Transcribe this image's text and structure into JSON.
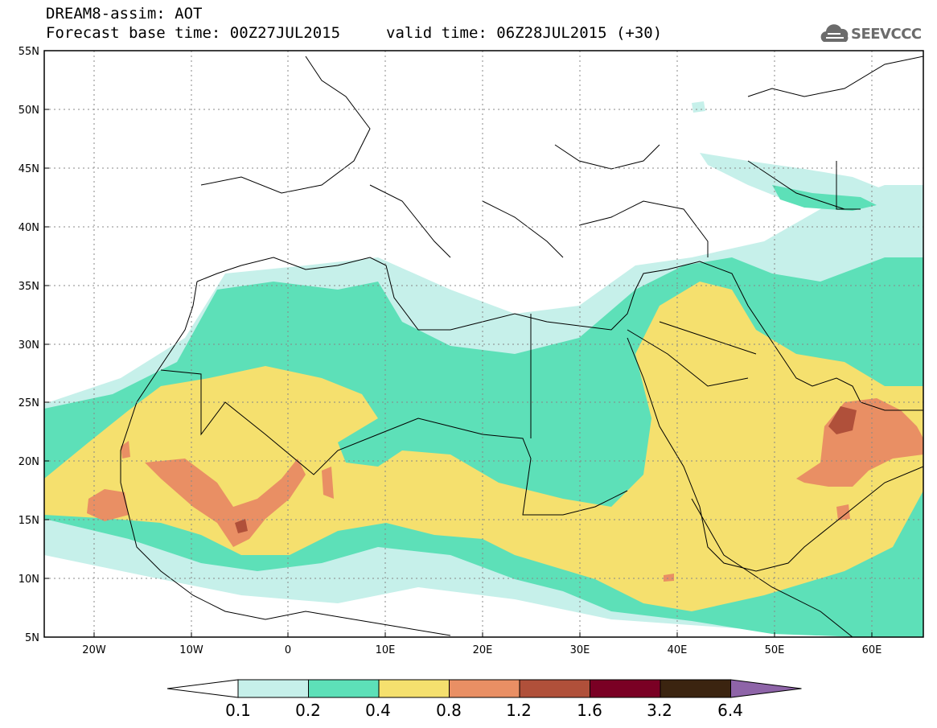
{
  "header": {
    "line1": "DREAM8-assim: AOT",
    "base_time": "Forecast base time: 00Z27JUL2015",
    "valid_time": "valid time: 06Z28JUL2015 (+30)"
  },
  "logo": {
    "text": "SEEVCCC",
    "icon": "cloud-icon",
    "color": "#6b6b6b"
  },
  "chart_data": {
    "type": "heatmap",
    "title": "DREAM8-assim: AOT",
    "lon_range": [
      -25,
      65
    ],
    "lat_range": [
      5,
      55
    ],
    "lat_ticks": [
      "5N",
      "10N",
      "15N",
      "20N",
      "25N",
      "30N",
      "35N",
      "40N",
      "45N",
      "50N",
      "55N"
    ],
    "lon_ticks": [
      "20W",
      "10W",
      "0",
      "10E",
      "20E",
      "30E",
      "40E",
      "50E",
      "60E"
    ],
    "colorbar": {
      "levels": [
        "0.1",
        "0.2",
        "0.4",
        "0.8",
        "1.2",
        "1.6",
        "3.2",
        "6.4"
      ],
      "colors": [
        "#ffffff",
        "#c6f0ea",
        "#5de0b8",
        "#f5e06e",
        "#e98f64",
        "#b0503a",
        "#7a0024",
        "#3b2410",
        "#8e64a8"
      ]
    }
  }
}
